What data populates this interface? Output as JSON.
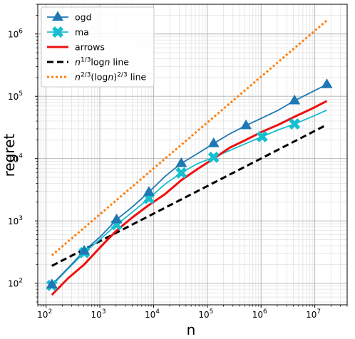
{
  "chart_data": {
    "type": "line",
    "xlabel": "n",
    "ylabel": "regret",
    "xscale": "log",
    "yscale": "log",
    "xlim": [
      70,
      40000000
    ],
    "ylim": [
      45,
      3000000
    ],
    "grid": true,
    "legend_position": "top-left",
    "x_ticks": [
      {
        "value": 100,
        "base": "10",
        "exp": "2"
      },
      {
        "value": 1000,
        "base": "10",
        "exp": "3"
      },
      {
        "value": 10000,
        "base": "10",
        "exp": "4"
      },
      {
        "value": 100000,
        "base": "10",
        "exp": "5"
      },
      {
        "value": 1000000,
        "base": "10",
        "exp": "6"
      },
      {
        "value": 10000000,
        "base": "10",
        "exp": "7"
      }
    ],
    "y_ticks": [
      {
        "value": 100,
        "base": "10",
        "exp": "2"
      },
      {
        "value": 1000,
        "base": "10",
        "exp": "3"
      },
      {
        "value": 10000,
        "base": "10",
        "exp": "4"
      },
      {
        "value": 100000,
        "base": "10",
        "exp": "5"
      },
      {
        "value": 1000000,
        "base": "10",
        "exp": "6"
      }
    ],
    "series": [
      {
        "name": "ogd",
        "color": "#1f77b4",
        "style": "solid",
        "marker": "triangle",
        "x": [
          128,
          256,
          512,
          1024,
          2048,
          4096,
          8192,
          16384,
          32768,
          65536,
          131072,
          262144,
          524288,
          1048576,
          2097152,
          4194304,
          8388608,
          16777216
        ],
        "y": [
          95,
          175,
          330,
          560,
          1050,
          1700,
          2900,
          5200,
          8400,
          12000,
          17500,
          25000,
          34000,
          45000,
          60000,
          85000,
          115000,
          155000
        ],
        "marker_x": [
          128,
          512,
          2048,
          8192,
          32768,
          131072,
          524288,
          4194304,
          16777216
        ],
        "marker_y": [
          95,
          330,
          1050,
          2900,
          8400,
          17500,
          34000,
          85000,
          155000
        ]
      },
      {
        "name": "ma",
        "color": "#17becf",
        "style": "solid",
        "marker": "x",
        "x": [
          128,
          256,
          512,
          1024,
          2048,
          4096,
          8192,
          16384,
          32768,
          65536,
          131072,
          262144,
          524288,
          1048576,
          2097152,
          4194304,
          8388608,
          16777216
        ],
        "y": [
          92,
          170,
          310,
          510,
          870,
          1400,
          2300,
          3900,
          5900,
          8300,
          10500,
          13500,
          17500,
          22500,
          29000,
          36000,
          46000,
          60000
        ],
        "marker_x": [
          128,
          512,
          2048,
          8192,
          32768,
          131072,
          1048576,
          4194304
        ],
        "marker_y": [
          92,
          310,
          870,
          2300,
          5900,
          10500,
          22500,
          36000
        ]
      },
      {
        "name": "arrows",
        "color": "#ee1111",
        "style": "solid",
        "marker": "none",
        "x": [
          128,
          256,
          512,
          1024,
          2048,
          4096,
          8192,
          16384,
          32768,
          65536,
          131072,
          262144,
          524288,
          1048576,
          2097152,
          4194304,
          8388608,
          16777216
        ],
        "y": [
          65,
          120,
          200,
          380,
          700,
          1150,
          1800,
          2700,
          4500,
          6800,
          10000,
          15000,
          20000,
          27000,
          35000,
          47000,
          62000,
          84000
        ]
      },
      {
        "name": "n^{1/3}logn line",
        "label_parts": [
          {
            "text": "n",
            "style": "italic"
          },
          {
            "text": "1/3",
            "style": "sup"
          },
          {
            "text": "log",
            "style": "normal"
          },
          {
            "text": "n",
            "style": "italic"
          },
          {
            "text": " line",
            "style": "normal"
          }
        ],
        "color": "#000000",
        "style": "dashed",
        "marker": "none",
        "x": [
          128,
          16777216
        ],
        "y": [
          190,
          35000
        ]
      },
      {
        "name": "n^{2/3}(logn)^{2/3} line",
        "label_parts": [
          {
            "text": "n",
            "style": "italic"
          },
          {
            "text": "2/3",
            "style": "sup"
          },
          {
            "text": "(log",
            "style": "normal"
          },
          {
            "text": "n",
            "style": "italic"
          },
          {
            "text": ")",
            "style": "normal"
          },
          {
            "text": "2/3",
            "style": "sup"
          },
          {
            "text": " line",
            "style": "normal"
          }
        ],
        "color": "#ff7f0e",
        "style": "dotted",
        "marker": "none",
        "x": [
          128,
          16777216
        ],
        "y": [
          280,
          1650000
        ]
      }
    ]
  }
}
